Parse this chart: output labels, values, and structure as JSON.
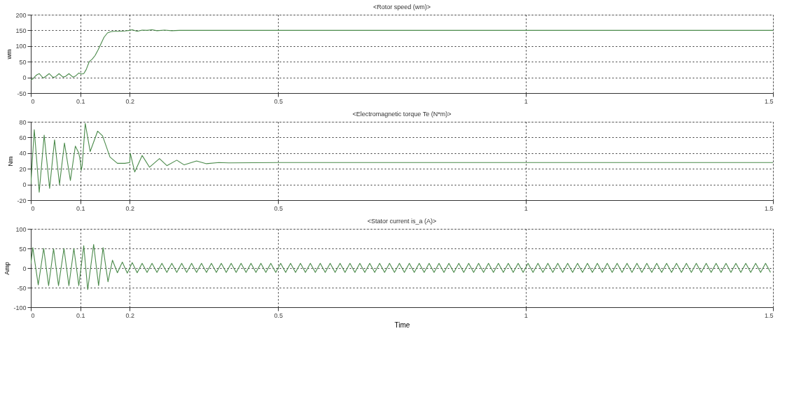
{
  "chart_data": [
    {
      "type": "line",
      "title": "<Rotor speed (wm)>",
      "ylabel": "wm",
      "xlim": [
        0,
        1.5
      ],
      "ylim": [
        -50,
        200
      ],
      "xticks": [
        0,
        0.1,
        0.2,
        0.5,
        1,
        1.5
      ],
      "yticks": [
        -50,
        0,
        50,
        100,
        150,
        200
      ],
      "grid": true,
      "line_style": "solid",
      "series": [
        {
          "color": "#4a8a4a",
          "x": [
            0,
            0.004,
            0.008,
            0.012,
            0.017,
            0.025,
            0.03,
            0.037,
            0.045,
            0.05,
            0.057,
            0.065,
            0.07,
            0.077,
            0.085,
            0.09,
            0.097,
            0.102,
            0.107,
            0.112,
            0.118,
            0.124,
            0.13,
            0.136,
            0.142,
            0.148,
            0.155,
            0.162,
            0.168,
            0.18,
            0.19,
            0.2,
            0.205,
            0.215,
            0.225,
            0.235,
            0.245,
            0.255,
            0.27,
            0.285,
            0.3,
            0.5,
            1,
            1.5
          ],
          "values": [
            -8,
            -5,
            2,
            8,
            12,
            -2,
            3,
            12,
            0,
            2,
            12,
            1,
            3,
            12,
            1,
            4,
            14,
            11,
            12,
            25,
            50,
            58,
            70,
            88,
            108,
            128,
            142,
            146,
            147,
            147,
            148,
            150,
            152,
            147,
            151,
            150,
            152,
            149,
            151,
            149,
            150,
            150,
            150,
            150
          ]
        }
      ]
    },
    {
      "type": "line",
      "title": "<Electromagnetic torque Te (N*m)>",
      "ylabel": "Nm",
      "xlim": [
        0,
        1.5
      ],
      "ylim": [
        -20,
        80
      ],
      "xticks": [
        0,
        0.1,
        0.2,
        0.5,
        1,
        1.5
      ],
      "yticks": [
        -20,
        0,
        20,
        40,
        60,
        80
      ],
      "grid": true,
      "line_style": "solid",
      "series": [
        {
          "color": "#4a8a4a",
          "x": [
            0,
            0.007,
            0.017,
            0.027,
            0.038,
            0.048,
            0.058,
            0.068,
            0.08,
            0.09,
            0.097,
            0.1,
            0.102,
            0.104,
            0.11,
            0.12,
            0.135,
            0.145,
            0.16,
            0.175,
            0.19,
            0.2,
            0.201,
            0.21,
            0.225,
            0.24,
            0.26,
            0.275,
            0.295,
            0.31,
            0.335,
            0.355,
            0.38,
            0.4,
            0.5,
            1,
            1.5
          ],
          "values": [
            0,
            70,
            -10,
            63,
            -5,
            57,
            0,
            53,
            5,
            49,
            40,
            30,
            18,
            25,
            78,
            42,
            68,
            62,
            35,
            27,
            27,
            28,
            40,
            16,
            37,
            22,
            33,
            24,
            31,
            25,
            30,
            26.5,
            28,
            27.5,
            28,
            28,
            28
          ]
        }
      ]
    },
    {
      "type": "line",
      "title": "<Stator current is_a (A)>",
      "xlabel": "Time",
      "ylabel": "Amp",
      "xlim": [
        0,
        1.5
      ],
      "ylim": [
        -100,
        100
      ],
      "xticks": [
        0,
        0.1,
        0.2,
        0.5,
        1,
        1.5
      ],
      "yticks": [
        -100,
        -50,
        0,
        50,
        100
      ],
      "grid": true,
      "line_style": "solid",
      "series": [
        {
          "color": "#4a8a4a",
          "x": [
            0,
            0.004,
            0.015,
            0.026,
            0.036,
            0.046,
            0.056,
            0.067,
            0.077,
            0.087,
            0.097,
            0.107,
            0.115,
            0.127,
            0.137,
            0.146,
            0.156,
            0.165,
            0.175,
            0.185,
            0.195,
            0.205,
            0.215,
            0.225,
            0.235,
            0.245,
            0.255,
            0.265,
            0.275,
            0.285,
            0.295,
            0.305,
            0.315,
            0.325,
            0.335,
            0.345,
            0.355,
            0.365,
            0.375,
            0.385,
            0.395,
            0.405,
            0.415,
            0.425,
            0.435,
            0.445,
            0.455,
            0.465,
            0.475,
            0.485,
            0.495,
            0.505,
            0.515,
            0.525,
            0.535,
            0.545,
            0.555,
            0.565,
            0.575,
            0.585,
            0.595,
            0.605,
            0.615,
            0.625,
            0.635,
            0.645,
            0.655,
            0.665,
            0.675,
            0.685,
            0.695,
            0.705,
            0.715,
            0.725,
            0.735,
            0.745,
            0.755,
            0.765,
            0.775,
            0.785,
            0.795,
            0.805,
            0.815,
            0.825,
            0.835,
            0.845,
            0.855,
            0.865,
            0.875,
            0.885,
            0.895,
            0.905,
            0.915,
            0.925,
            0.935,
            0.945,
            0.955,
            0.965,
            0.975,
            0.985,
            0.995,
            1.005,
            1.015,
            1.025,
            1.035,
            1.045,
            1.055,
            1.065,
            1.075,
            1.085,
            1.095,
            1.105,
            1.115,
            1.125,
            1.135,
            1.145,
            1.155,
            1.165,
            1.175,
            1.185,
            1.195,
            1.205,
            1.215,
            1.225,
            1.235,
            1.245,
            1.255,
            1.265,
            1.275,
            1.285,
            1.295,
            1.305,
            1.315,
            1.325,
            1.335,
            1.345,
            1.355,
            1.365,
            1.375,
            1.385,
            1.395,
            1.405,
            1.415,
            1.425,
            1.435,
            1.445,
            1.455,
            1.465,
            1.475,
            1.485,
            1.495
          ],
          "values": [
            10,
            52,
            -43,
            50,
            -45,
            49,
            -45,
            50,
            -45,
            50,
            -45,
            57,
            -55,
            60,
            -45,
            52,
            -35,
            20,
            -12,
            15,
            -13,
            14,
            -12,
            12,
            -11,
            12,
            -11,
            12,
            -11,
            12,
            -11,
            12,
            -11,
            12,
            -11,
            12,
            -11,
            12,
            -11,
            12,
            -11,
            12,
            -11,
            12,
            -11,
            12,
            -11,
            12,
            -11,
            12,
            -11,
            12,
            -11,
            12,
            -11,
            12,
            -11,
            12,
            -11,
            12,
            -11,
            12,
            -11,
            12,
            -11,
            12,
            -11,
            12,
            -11,
            12,
            -11,
            12,
            -11,
            12,
            -11,
            12,
            -11,
            12,
            -11,
            12,
            -11,
            12,
            -11,
            12,
            -11,
            12,
            -11,
            12,
            -11,
            12,
            -11,
            12,
            -11,
            12,
            -11,
            12,
            -11,
            12,
            -11,
            12,
            -11,
            12,
            -11,
            12,
            -11,
            12,
            -11,
            12,
            -11,
            12,
            -11,
            12,
            -11,
            12,
            -11,
            12,
            -11,
            12,
            -11,
            12,
            -11,
            12,
            -11,
            12,
            -11,
            12,
            -11,
            12,
            -11,
            12,
            -11,
            12,
            -11,
            12,
            -11,
            12,
            -11,
            12,
            -11,
            12,
            -11,
            12,
            -11,
            12,
            -11,
            12,
            -11,
            12,
            -11,
            12,
            -11
          ]
        }
      ]
    }
  ]
}
